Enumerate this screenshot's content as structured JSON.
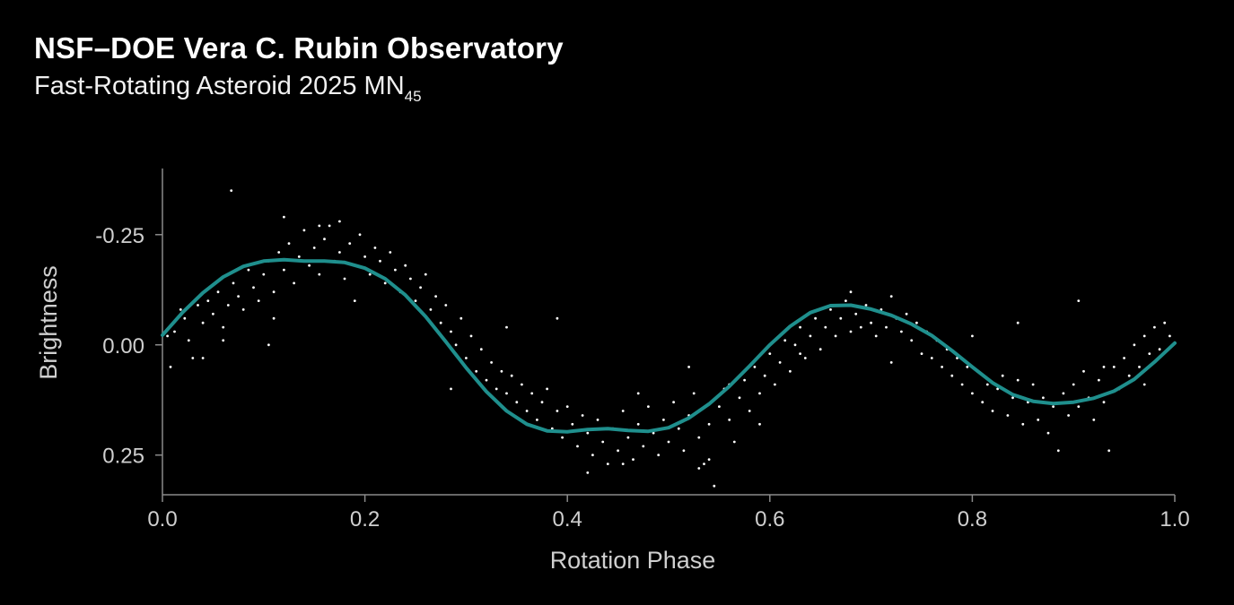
{
  "header": {
    "title": "NSF–DOE Vera C. Rubin Observatory",
    "subtitle_main": "Fast-Rotating Asteroid 2025 MN",
    "subtitle_subscript": "45"
  },
  "chart_data": {
    "type": "scatter",
    "title": "",
    "xlabel": "Rotation Phase",
    "ylabel": "Brightness",
    "xlim": [
      0.0,
      1.0
    ],
    "ylim": [
      -0.4,
      0.34
    ],
    "y_inverted": true,
    "grid": false,
    "x_ticks": [
      0.0,
      0.2,
      0.4,
      0.6,
      0.8,
      1.0
    ],
    "x_tick_labels": [
      "0.0",
      "0.2",
      "0.4",
      "0.6",
      "0.8",
      "1.0"
    ],
    "y_ticks": [
      -0.25,
      0.0,
      0.25
    ],
    "y_tick_labels": [
      "-0.25",
      "0.00",
      "0.25"
    ],
    "colors": {
      "points": "#ffffff",
      "fit": "#1f8f8d",
      "axis": "#8a8a8a",
      "background": "#000000"
    },
    "series": [
      {
        "kind": "points",
        "points": [
          [
            0.005,
            -0.02
          ],
          [
            0.008,
            0.05
          ],
          [
            0.012,
            -0.03
          ],
          [
            0.018,
            -0.08
          ],
          [
            0.022,
            -0.06
          ],
          [
            0.026,
            -0.01
          ],
          [
            0.03,
            0.03
          ],
          [
            0.035,
            -0.09
          ],
          [
            0.04,
            -0.05
          ],
          [
            0.045,
            -0.1
          ],
          [
            0.05,
            -0.07
          ],
          [
            0.055,
            -0.12
          ],
          [
            0.06,
            -0.04
          ],
          [
            0.065,
            -0.09
          ],
          [
            0.07,
            -0.14
          ],
          [
            0.075,
            -0.11
          ],
          [
            0.08,
            -0.08
          ],
          [
            0.085,
            -0.17
          ],
          [
            0.09,
            -0.13
          ],
          [
            0.095,
            -0.1
          ],
          [
            0.1,
            -0.16
          ],
          [
            0.105,
            -0.19
          ],
          [
            0.11,
            -0.12
          ],
          [
            0.115,
            -0.21
          ],
          [
            0.12,
            -0.17
          ],
          [
            0.125,
            -0.23
          ],
          [
            0.13,
            -0.14
          ],
          [
            0.135,
            -0.2
          ],
          [
            0.14,
            -0.26
          ],
          [
            0.145,
            -0.18
          ],
          [
            0.15,
            -0.22
          ],
          [
            0.155,
            -0.16
          ],
          [
            0.16,
            -0.24
          ],
          [
            0.165,
            -0.27
          ],
          [
            0.17,
            -0.19
          ],
          [
            0.175,
            -0.21
          ],
          [
            0.18,
            -0.15
          ],
          [
            0.185,
            -0.23
          ],
          [
            0.19,
            -0.18
          ],
          [
            0.195,
            -0.25
          ],
          [
            0.2,
            -0.2
          ],
          [
            0.205,
            -0.16
          ],
          [
            0.21,
            -0.22
          ],
          [
            0.215,
            -0.19
          ],
          [
            0.22,
            -0.14
          ],
          [
            0.225,
            -0.21
          ],
          [
            0.23,
            -0.17
          ],
          [
            0.235,
            -0.12
          ],
          [
            0.24,
            -0.18
          ],
          [
            0.245,
            -0.15
          ],
          [
            0.25,
            -0.1
          ],
          [
            0.255,
            -0.13
          ],
          [
            0.26,
            -0.16
          ],
          [
            0.265,
            -0.08
          ],
          [
            0.27,
            -0.11
          ],
          [
            0.275,
            -0.05
          ],
          [
            0.28,
            -0.09
          ],
          [
            0.285,
            -0.03
          ],
          [
            0.29,
            0.0
          ],
          [
            0.295,
            -0.06
          ],
          [
            0.3,
            0.03
          ],
          [
            0.305,
            -0.02
          ],
          [
            0.31,
            0.06
          ],
          [
            0.315,
            0.01
          ],
          [
            0.32,
            0.08
          ],
          [
            0.325,
            0.04
          ],
          [
            0.33,
            0.1
          ],
          [
            0.335,
            0.06
          ],
          [
            0.34,
            0.11
          ],
          [
            0.345,
            0.07
          ],
          [
            0.35,
            0.13
          ],
          [
            0.355,
            0.09
          ],
          [
            0.36,
            0.15
          ],
          [
            0.365,
            0.11
          ],
          [
            0.37,
            0.17
          ],
          [
            0.375,
            0.13
          ],
          [
            0.38,
            0.1
          ],
          [
            0.385,
            0.19
          ],
          [
            0.39,
            0.15
          ],
          [
            0.395,
            0.21
          ],
          [
            0.4,
            0.14
          ],
          [
            0.405,
            0.18
          ],
          [
            0.41,
            0.23
          ],
          [
            0.415,
            0.16
          ],
          [
            0.42,
            0.2
          ],
          [
            0.425,
            0.25
          ],
          [
            0.43,
            0.17
          ],
          [
            0.435,
            0.22
          ],
          [
            0.44,
            0.27
          ],
          [
            0.445,
            0.19
          ],
          [
            0.45,
            0.24
          ],
          [
            0.455,
            0.15
          ],
          [
            0.46,
            0.21
          ],
          [
            0.465,
            0.26
          ],
          [
            0.47,
            0.18
          ],
          [
            0.475,
            0.23
          ],
          [
            0.48,
            0.14
          ],
          [
            0.485,
            0.2
          ],
          [
            0.49,
            0.25
          ],
          [
            0.495,
            0.17
          ],
          [
            0.5,
            0.22
          ],
          [
            0.505,
            0.13
          ],
          [
            0.51,
            0.19
          ],
          [
            0.515,
            0.24
          ],
          [
            0.52,
            0.16
          ],
          [
            0.525,
            0.11
          ],
          [
            0.53,
            0.21
          ],
          [
            0.535,
            0.27
          ],
          [
            0.54,
            0.18
          ],
          [
            0.545,
            0.32
          ],
          [
            0.55,
            0.14
          ],
          [
            0.555,
            0.1
          ],
          [
            0.56,
            0.17
          ],
          [
            0.565,
            0.22
          ],
          [
            0.57,
            0.12
          ],
          [
            0.575,
            0.08
          ],
          [
            0.58,
            0.15
          ],
          [
            0.585,
            0.05
          ],
          [
            0.59,
            0.11
          ],
          [
            0.595,
            0.07
          ],
          [
            0.6,
            0.02
          ],
          [
            0.605,
            0.09
          ],
          [
            0.61,
            0.04
          ],
          [
            0.615,
            -0.01
          ],
          [
            0.62,
            0.06
          ],
          [
            0.625,
            0.0
          ],
          [
            0.63,
            -0.04
          ],
          [
            0.635,
            0.03
          ],
          [
            0.64,
            -0.02
          ],
          [
            0.645,
            -0.06
          ],
          [
            0.65,
            0.01
          ],
          [
            0.655,
            -0.04
          ],
          [
            0.66,
            -0.08
          ],
          [
            0.665,
            -0.02
          ],
          [
            0.67,
            -0.06
          ],
          [
            0.675,
            -0.1
          ],
          [
            0.68,
            -0.03
          ],
          [
            0.685,
            -0.07
          ],
          [
            0.69,
            -0.04
          ],
          [
            0.695,
            -0.09
          ],
          [
            0.7,
            -0.05
          ],
          [
            0.705,
            -0.02
          ],
          [
            0.71,
            -0.08
          ],
          [
            0.715,
            -0.04
          ],
          [
            0.72,
            -0.11
          ],
          [
            0.725,
            -0.06
          ],
          [
            0.73,
            -0.03
          ],
          [
            0.735,
            -0.07
          ],
          [
            0.74,
            -0.01
          ],
          [
            0.745,
            -0.05
          ],
          [
            0.75,
            0.02
          ],
          [
            0.755,
            -0.03
          ],
          [
            0.76,
            0.03
          ],
          [
            0.765,
            -0.01
          ],
          [
            0.77,
            0.05
          ],
          [
            0.775,
            0.01
          ],
          [
            0.78,
            0.07
          ],
          [
            0.785,
            0.03
          ],
          [
            0.79,
            0.09
          ],
          [
            0.795,
            0.05
          ],
          [
            0.8,
            0.11
          ],
          [
            0.805,
            0.06
          ],
          [
            0.81,
            0.13
          ],
          [
            0.815,
            0.09
          ],
          [
            0.82,
            0.15
          ],
          [
            0.825,
            0.1
          ],
          [
            0.83,
            0.07
          ],
          [
            0.835,
            0.16
          ],
          [
            0.84,
            0.12
          ],
          [
            0.845,
            0.08
          ],
          [
            0.85,
            0.18
          ],
          [
            0.855,
            0.13
          ],
          [
            0.86,
            0.09
          ],
          [
            0.865,
            0.17
          ],
          [
            0.87,
            0.12
          ],
          [
            0.875,
            0.2
          ],
          [
            0.88,
            0.14
          ],
          [
            0.885,
            0.24
          ],
          [
            0.89,
            0.11
          ],
          [
            0.895,
            0.16
          ],
          [
            0.9,
            0.09
          ],
          [
            0.905,
            0.14
          ],
          [
            0.91,
            0.06
          ],
          [
            0.915,
            0.12
          ],
          [
            0.92,
            0.17
          ],
          [
            0.925,
            0.08
          ],
          [
            0.93,
            0.13
          ],
          [
            0.935,
            0.24
          ],
          [
            0.94,
            0.05
          ],
          [
            0.945,
            0.1
          ],
          [
            0.95,
            0.03
          ],
          [
            0.955,
            0.07
          ],
          [
            0.96,
            0.0
          ],
          [
            0.965,
            0.05
          ],
          [
            0.97,
            -0.02
          ],
          [
            0.975,
            0.02
          ],
          [
            0.98,
            -0.04
          ],
          [
            0.985,
            0.01
          ],
          [
            0.99,
            -0.05
          ],
          [
            0.995,
            -0.02
          ],
          [
            0.068,
            -0.35
          ],
          [
            0.12,
            -0.29
          ],
          [
            0.155,
            -0.27
          ],
          [
            0.175,
            -0.28
          ],
          [
            0.42,
            0.29
          ],
          [
            0.455,
            0.27
          ],
          [
            0.54,
            0.26
          ],
          [
            0.53,
            0.28
          ],
          [
            0.105,
            0.0
          ],
          [
            0.04,
            0.03
          ],
          [
            0.63,
            0.02
          ],
          [
            0.39,
            -0.06
          ],
          [
            0.68,
            -0.12
          ],
          [
            0.905,
            -0.1
          ],
          [
            0.19,
            -0.1
          ],
          [
            0.11,
            -0.06
          ],
          [
            0.06,
            -0.01
          ],
          [
            0.34,
            -0.04
          ],
          [
            0.59,
            0.18
          ],
          [
            0.845,
            -0.05
          ],
          [
            0.72,
            0.04
          ],
          [
            0.8,
            -0.02
          ],
          [
            0.93,
            0.05
          ],
          [
            0.97,
            0.09
          ],
          [
            0.285,
            0.1
          ],
          [
            0.56,
            0.09
          ],
          [
            0.47,
            0.11
          ],
          [
            0.52,
            0.05
          ]
        ]
      },
      {
        "kind": "fit",
        "points": [
          [
            0.0,
            -0.022
          ],
          [
            0.02,
            -0.074
          ],
          [
            0.04,
            -0.118
          ],
          [
            0.06,
            -0.154
          ],
          [
            0.08,
            -0.178
          ],
          [
            0.1,
            -0.19
          ],
          [
            0.12,
            -0.193
          ],
          [
            0.14,
            -0.19
          ],
          [
            0.16,
            -0.19
          ],
          [
            0.18,
            -0.187
          ],
          [
            0.2,
            -0.174
          ],
          [
            0.22,
            -0.15
          ],
          [
            0.24,
            -0.113
          ],
          [
            0.26,
            -0.064
          ],
          [
            0.28,
            -0.007
          ],
          [
            0.3,
            0.052
          ],
          [
            0.32,
            0.106
          ],
          [
            0.34,
            0.15
          ],
          [
            0.36,
            0.18
          ],
          [
            0.38,
            0.195
          ],
          [
            0.4,
            0.197
          ],
          [
            0.42,
            0.192
          ],
          [
            0.44,
            0.19
          ],
          [
            0.46,
            0.194
          ],
          [
            0.48,
            0.196
          ],
          [
            0.5,
            0.188
          ],
          [
            0.52,
            0.166
          ],
          [
            0.54,
            0.134
          ],
          [
            0.56,
            0.094
          ],
          [
            0.58,
            0.048
          ],
          [
            0.6,
            0.0
          ],
          [
            0.62,
            -0.042
          ],
          [
            0.64,
            -0.073
          ],
          [
            0.66,
            -0.089
          ],
          [
            0.68,
            -0.09
          ],
          [
            0.7,
            -0.081
          ],
          [
            0.72,
            -0.067
          ],
          [
            0.74,
            -0.047
          ],
          [
            0.76,
            -0.021
          ],
          [
            0.78,
            0.013
          ],
          [
            0.8,
            0.05
          ],
          [
            0.82,
            0.086
          ],
          [
            0.84,
            0.113
          ],
          [
            0.86,
            0.128
          ],
          [
            0.88,
            0.133
          ],
          [
            0.9,
            0.13
          ],
          [
            0.92,
            0.121
          ],
          [
            0.94,
            0.105
          ],
          [
            0.96,
            0.078
          ],
          [
            0.98,
            0.039
          ],
          [
            1.0,
            -0.004
          ]
        ]
      }
    ]
  }
}
